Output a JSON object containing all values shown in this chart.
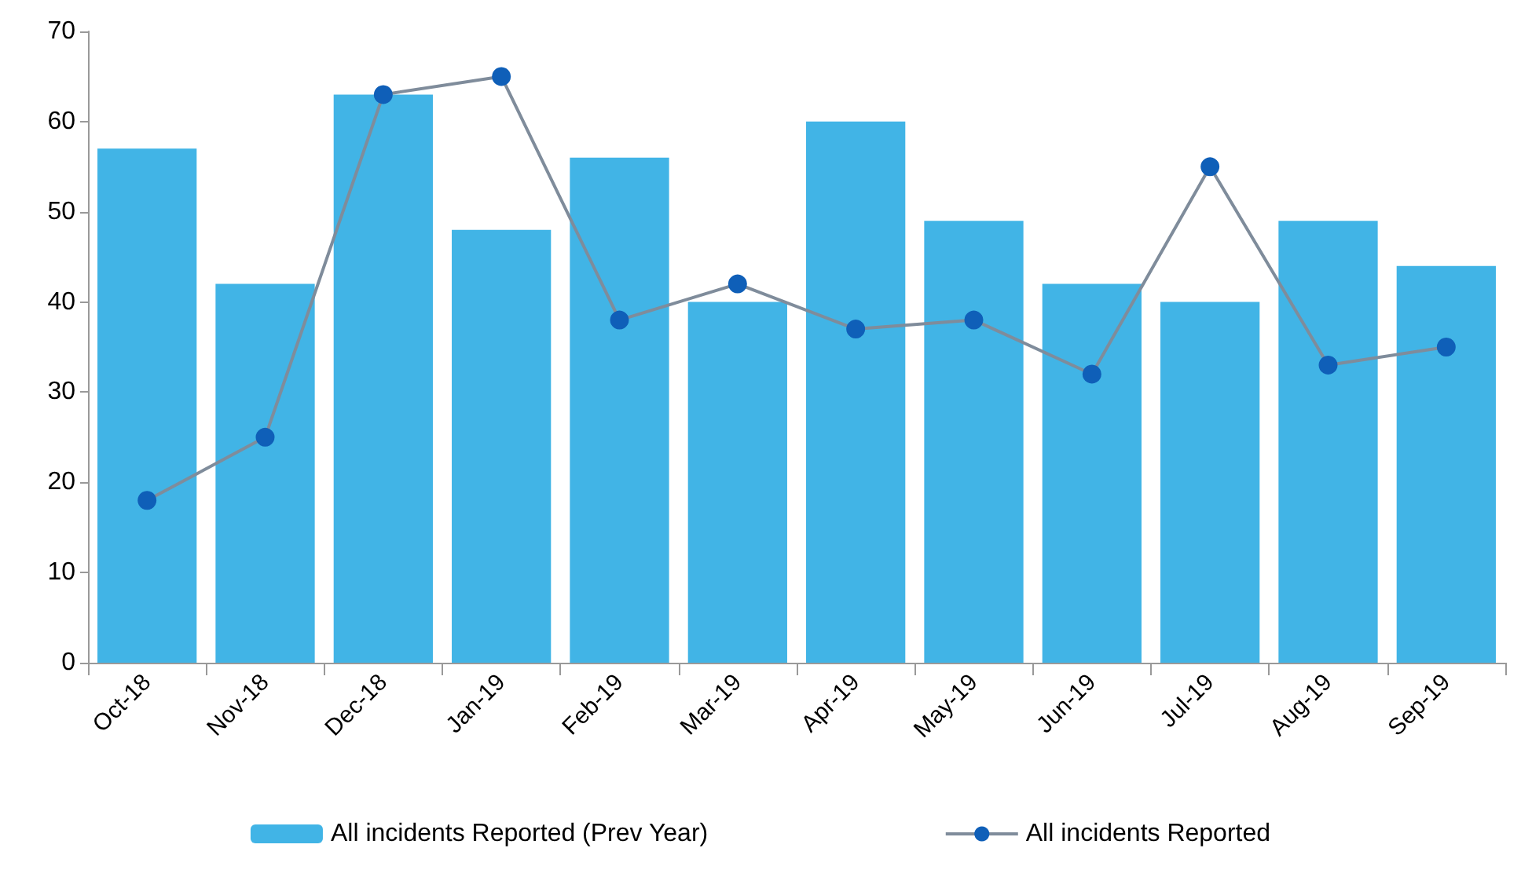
{
  "chart_data": {
    "type": "bar",
    "categories": [
      "Oct-18",
      "Nov-18",
      "Dec-18",
      "Jan-19",
      "Feb-19",
      "Mar-19",
      "Apr-19",
      "May-19",
      "Jun-19",
      "Jul-19",
      "Aug-19",
      "Sep-19"
    ],
    "series": [
      {
        "name": "All incidents Reported (Prev Year)",
        "color": "#41b4e6",
        "values": [
          57,
          42,
          63,
          48,
          56,
          40,
          60,
          49,
          42,
          40,
          49,
          44
        ]
      },
      {
        "name": "All incidents Reported",
        "type": "line",
        "color": "#0f5fb8",
        "values": [
          18,
          25,
          63,
          65,
          38,
          42,
          37,
          38,
          32,
          55,
          33,
          35
        ]
      }
    ],
    "ylim": [
      0,
      70
    ],
    "yticks": [
      0,
      10,
      20,
      30,
      40,
      50,
      60,
      70
    ],
    "grid": false,
    "legend": "bottom",
    "marker": "circle",
    "line_style": "solid"
  }
}
